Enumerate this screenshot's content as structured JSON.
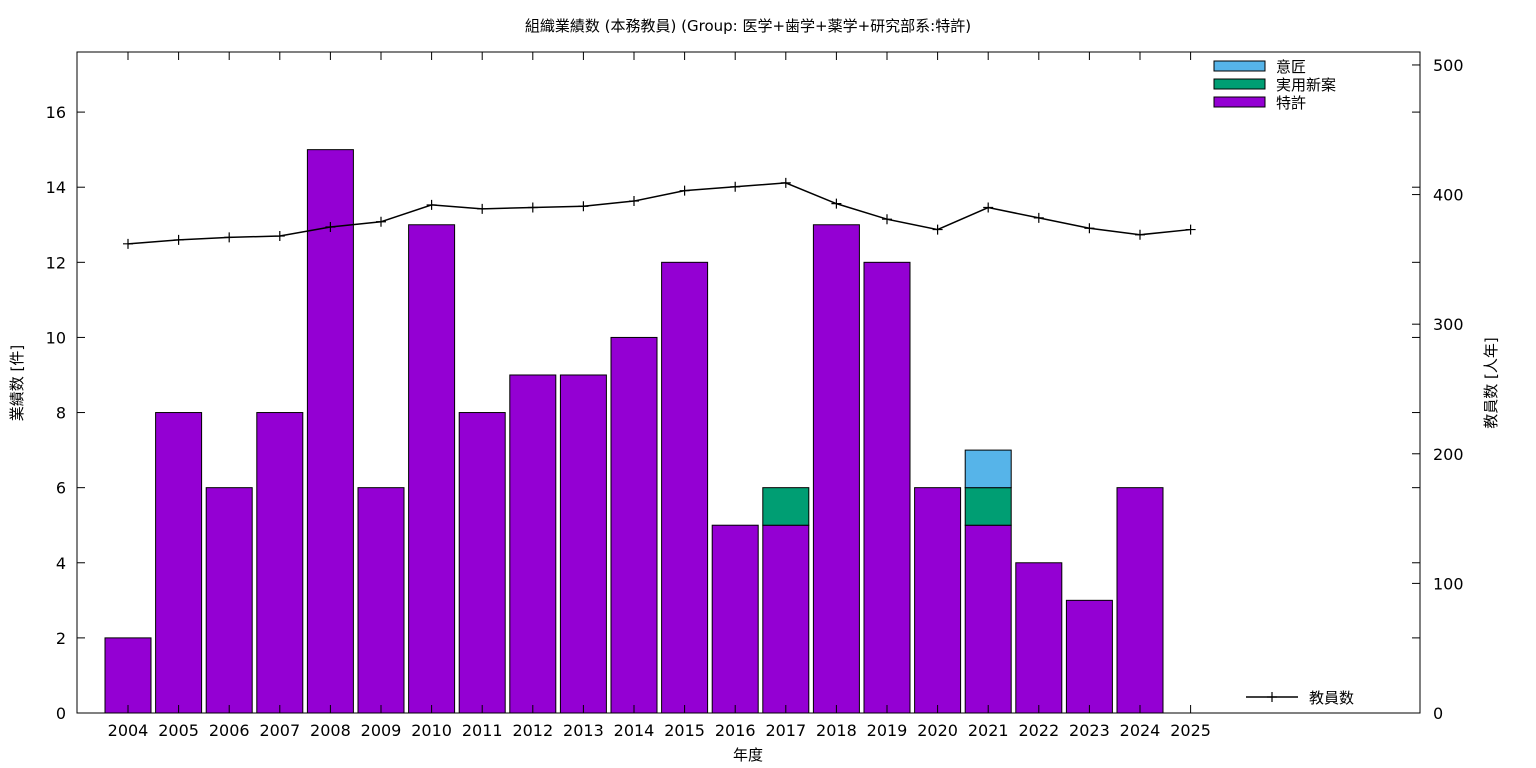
{
  "chart_data": {
    "type": "bar",
    "title": "組織業績数 (本務教員) (Group: 医学+歯学+薬学+研究部系:特許)",
    "xlabel": "年度",
    "ylabel": "業績数 [件]",
    "y2label": "教員数 [人年]",
    "categories": [
      "2004",
      "2005",
      "2006",
      "2007",
      "2008",
      "2009",
      "2010",
      "2011",
      "2012",
      "2013",
      "2014",
      "2015",
      "2016",
      "2017",
      "2018",
      "2019",
      "2020",
      "2021",
      "2022",
      "2023",
      "2024",
      "2025"
    ],
    "ylim": [
      0,
      17.6
    ],
    "yticks": [
      0,
      2,
      4,
      6,
      8,
      10,
      12,
      14,
      16
    ],
    "y2lim": [
      0,
      510
    ],
    "y2ticks": [
      0,
      100,
      200,
      300,
      400,
      500
    ],
    "stacked": true,
    "series": [
      {
        "name": "特許",
        "color": "#9400d3",
        "values": [
          2,
          8,
          6,
          8,
          15,
          6,
          13,
          8,
          9,
          9,
          10,
          12,
          5,
          5,
          13,
          12,
          6,
          5,
          4,
          3,
          6,
          0
        ]
      },
      {
        "name": "実用新案",
        "color": "#009e73",
        "values": [
          0,
          0,
          0,
          0,
          0,
          0,
          0,
          0,
          0,
          0,
          0,
          0,
          0,
          1,
          0,
          0,
          0,
          1,
          0,
          0,
          0,
          0
        ]
      },
      {
        "name": "意匠",
        "color": "#56b4e9",
        "values": [
          0,
          0,
          0,
          0,
          0,
          0,
          0,
          0,
          0,
          0,
          0,
          0,
          0,
          0,
          0,
          0,
          0,
          1,
          0,
          0,
          0,
          0
        ]
      }
    ],
    "line_series": {
      "name": "教員数",
      "axis": "y2",
      "color": "#000000",
      "values": [
        362,
        365,
        367,
        368,
        375,
        379,
        392,
        389,
        390,
        391,
        395,
        403,
        406,
        409,
        393,
        381,
        373,
        390,
        382,
        374,
        369,
        373
      ]
    },
    "legend_bars_order": [
      "意匠",
      "実用新案",
      "特許"
    ],
    "legend_bars_position": "top-right",
    "legend_line_position": "bottom-right",
    "grid": false
  }
}
